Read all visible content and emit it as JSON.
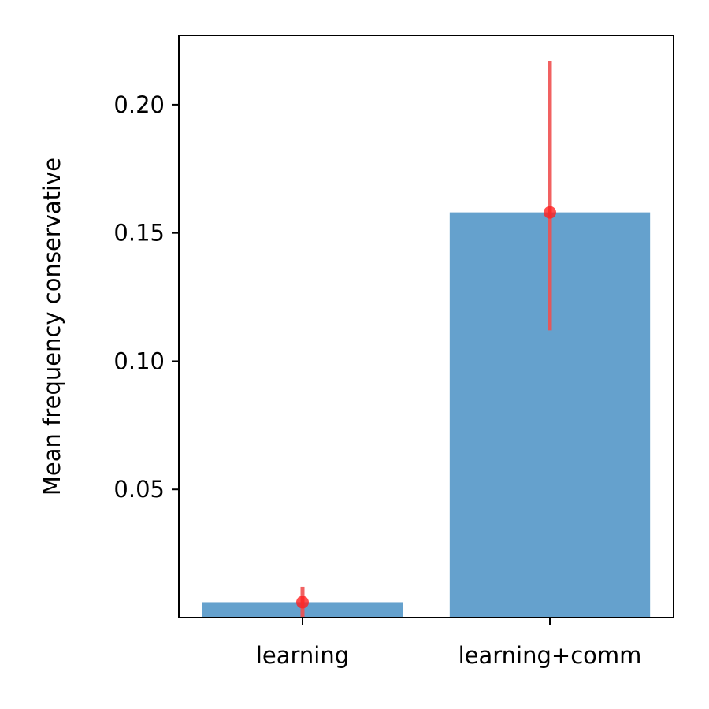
{
  "chart_data": {
    "type": "bar",
    "title": "",
    "xlabel": "",
    "ylabel": "Mean frequency conservative",
    "categories": [
      "learning",
      "learning+comm"
    ],
    "values": [
      0.006,
      0.158
    ],
    "error_low": [
      0.0,
      0.112
    ],
    "error_high": [
      0.012,
      0.217
    ],
    "ylim": [
      0.0,
      0.227
    ],
    "yticks": [
      0.05,
      0.1,
      0.15,
      0.2
    ],
    "ytick_labels": [
      "0.05",
      "0.10",
      "0.15",
      "0.20"
    ],
    "grid": false,
    "bar_color": "#4a90c4",
    "bar_opacity": 0.85,
    "marker_color": "#ff2020",
    "errorbar_color": "#f05050"
  }
}
